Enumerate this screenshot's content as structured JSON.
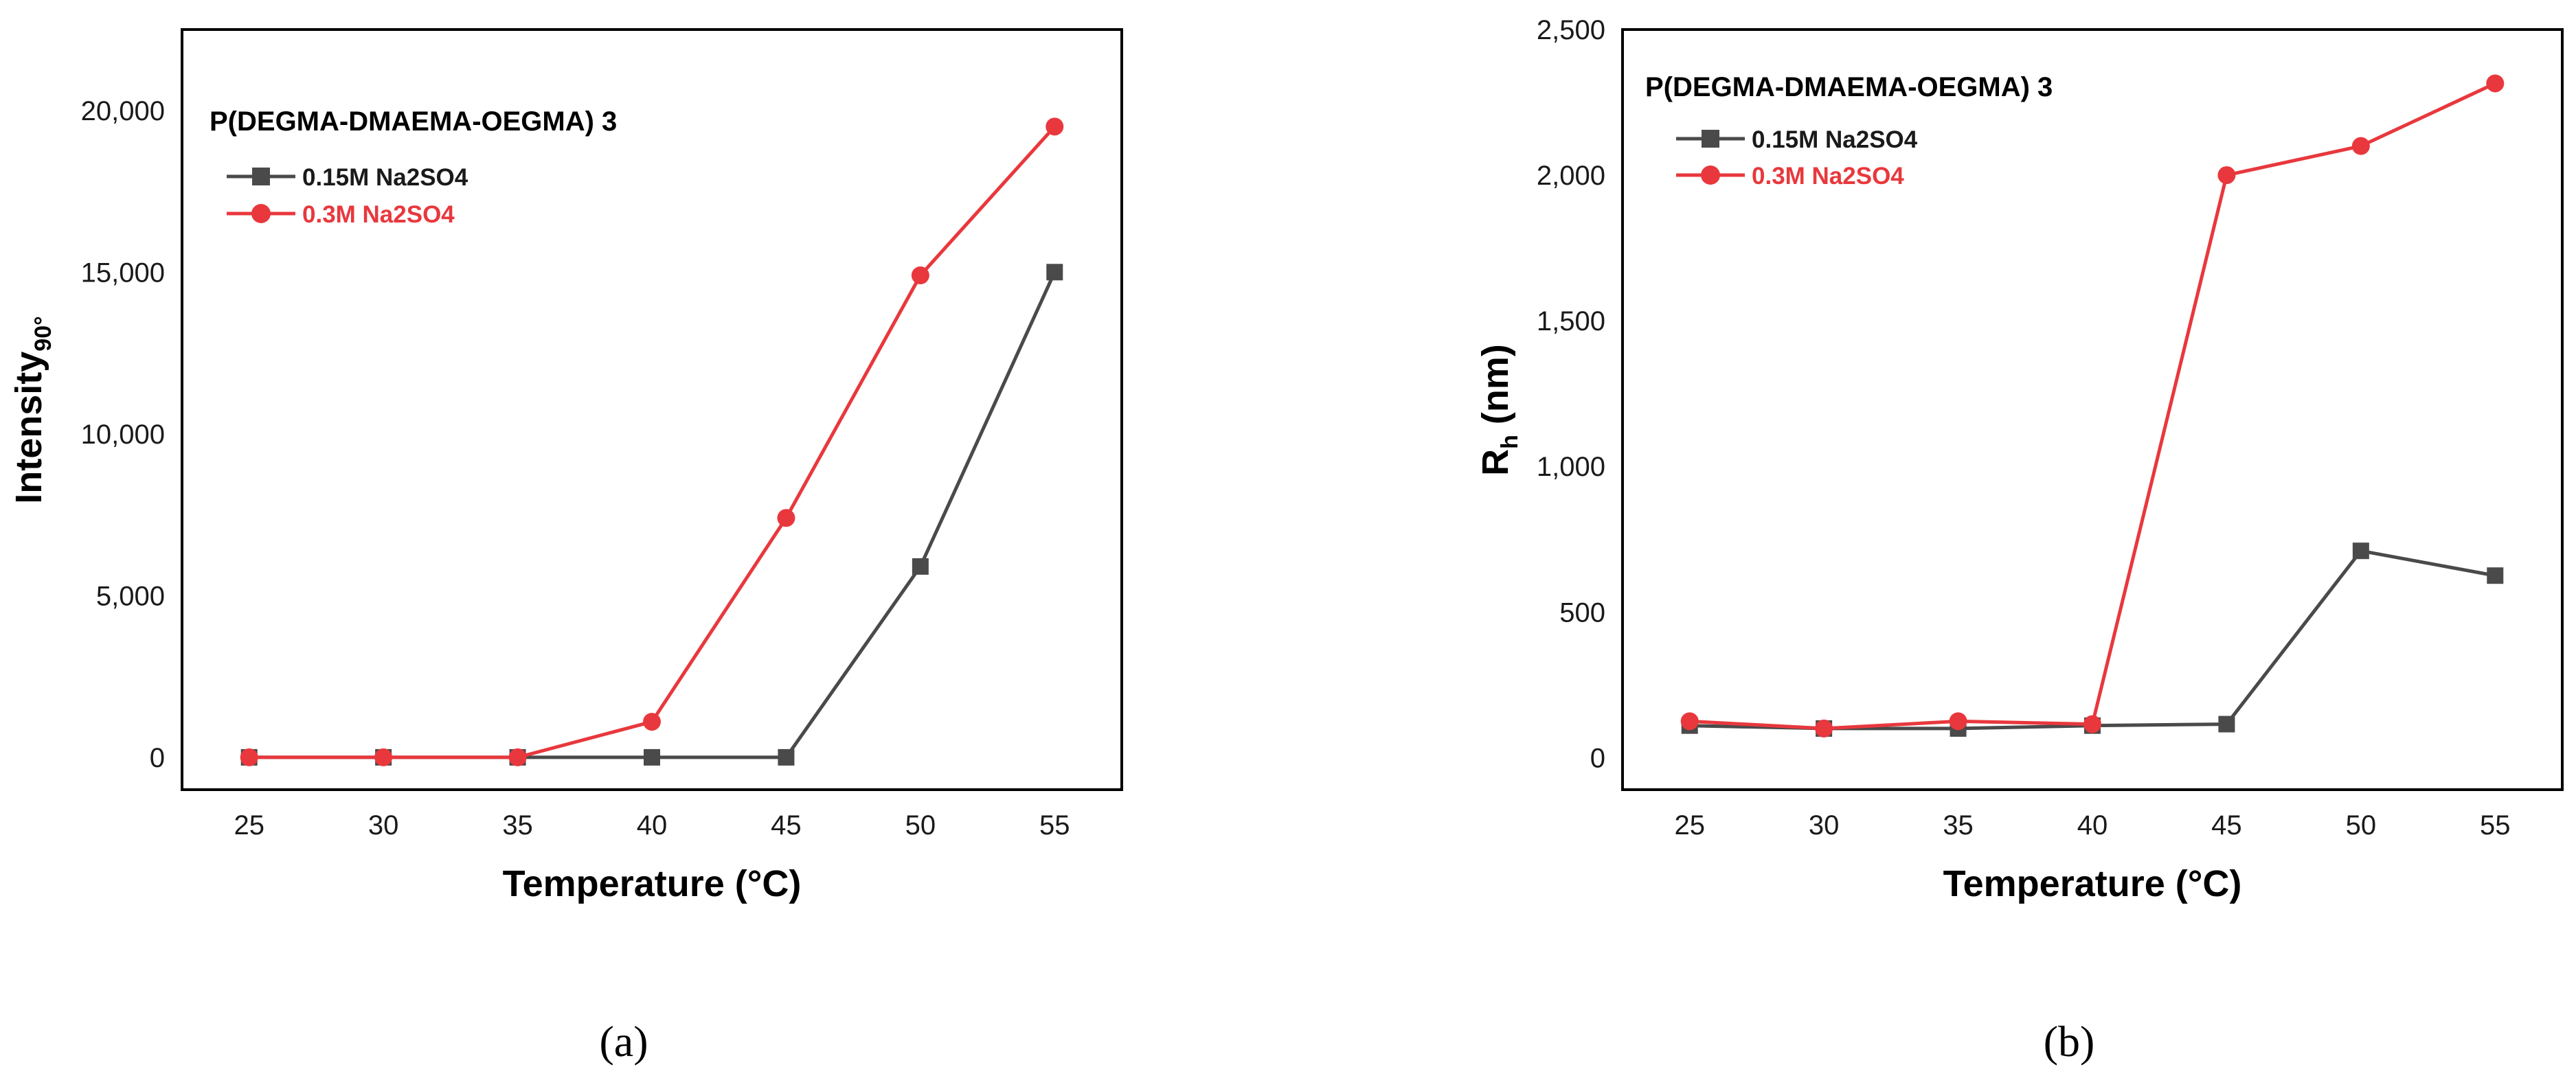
{
  "colors": {
    "series1": "#4a4a4a",
    "series2": "#e8383d"
  },
  "chart_data": [
    {
      "type": "line",
      "panel_label": "(a)",
      "title": "P(DEGMA-DMAEMA-OEGMA) 3",
      "xlabel": "Temperature (°C)",
      "ylabel_main": "Intensity",
      "ylabel_sub": "90°",
      "x": [
        25,
        30,
        35,
        40,
        45,
        50,
        55
      ],
      "xticks": [
        "25",
        "30",
        "35",
        "40",
        "45",
        "50",
        "55"
      ],
      "xlim": [
        22.5,
        57.5
      ],
      "yticks": [
        0,
        5000,
        10000,
        15000,
        20000
      ],
      "ytick_labels": [
        "0",
        "5,000",
        "10,000",
        "15,000",
        "20,000"
      ],
      "ylim": [
        -1000,
        22500
      ],
      "series": [
        {
          "name": "0.15M Na2SO4",
          "marker": "square",
          "values": [
            0,
            0,
            0,
            0,
            0,
            5900,
            15000
          ]
        },
        {
          "name": "0.3M Na2SO4",
          "marker": "circle",
          "values": [
            0,
            0,
            0,
            1100,
            7400,
            14900,
            19500
          ]
        }
      ]
    },
    {
      "type": "line",
      "panel_label": "(b)",
      "title": "P(DEGMA-DMAEMA-OEGMA) 3",
      "xlabel": "Temperature (°C)",
      "ylabel_main": "R",
      "ylabel_sub": "h",
      "ylabel_tail": " (nm)",
      "x": [
        25,
        30,
        35,
        40,
        45,
        50,
        55
      ],
      "xticks": [
        "25",
        "30",
        "35",
        "40",
        "45",
        "50",
        "55"
      ],
      "xlim": [
        22.5,
        57.5
      ],
      "yticks": [
        0,
        500,
        1000,
        1500,
        2000,
        2500
      ],
      "ytick_labels": [
        "0",
        "500",
        "1,000",
        "1,500",
        "2,000",
        "2,500"
      ],
      "ylim": [
        -110,
        2500
      ],
      "series": [
        {
          "name": "0.15M Na2SO4",
          "marker": "square",
          "values": [
            110,
            100,
            100,
            110,
            115,
            710,
            625
          ]
        },
        {
          "name": "0.3M Na2SO4",
          "marker": "circle",
          "values": [
            125,
            100,
            125,
            115,
            2000,
            2100,
            2315
          ]
        }
      ]
    }
  ]
}
